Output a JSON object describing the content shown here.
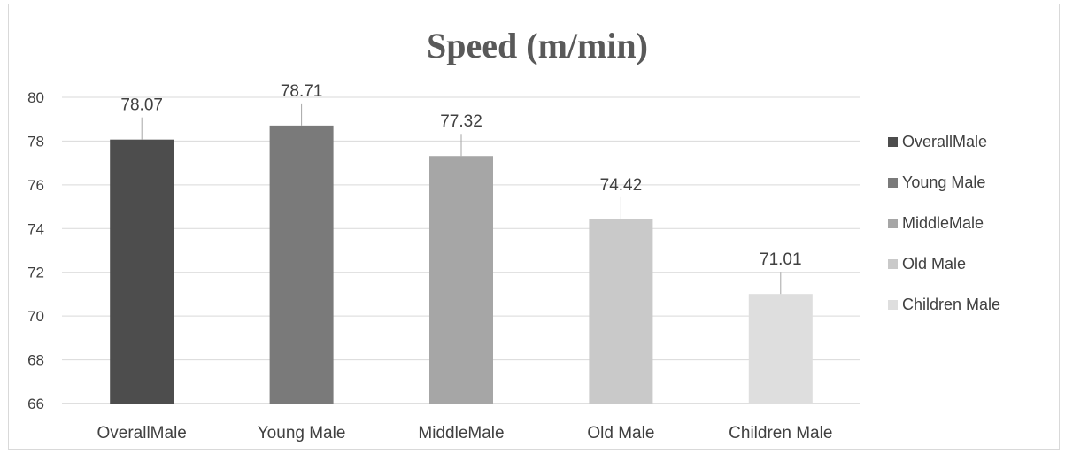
{
  "chart_data": {
    "type": "bar",
    "title": "Speed (m/min)",
    "xlabel": "",
    "ylabel": "",
    "categories": [
      "OverallMale",
      "Young Male",
      "MiddleMale",
      "Old Male",
      "Children Male"
    ],
    "values": [
      78.07,
      78.71,
      77.32,
      74.42,
      71.01
    ],
    "value_labels": [
      "78.07",
      "78.71",
      "77.32",
      "74.42",
      "71.01"
    ],
    "colors": [
      "#4d4d4d",
      "#7a7a7a",
      "#a6a6a6",
      "#c9c9c9",
      "#dedede"
    ],
    "ylim": [
      66,
      80
    ],
    "yticks": [
      66,
      68,
      70,
      72,
      74,
      76,
      78,
      80
    ],
    "grid": true,
    "legend": {
      "position": "right",
      "entries": [
        "OverallMale",
        "Young Male",
        "MiddleMale",
        "Old Male",
        " Children Male"
      ]
    }
  }
}
